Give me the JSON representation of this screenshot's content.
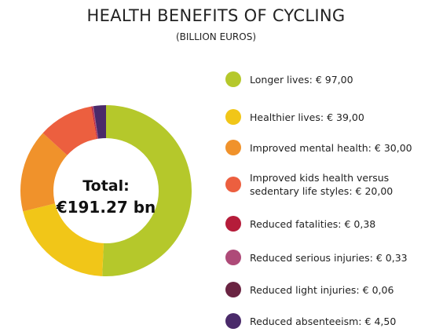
{
  "chart_data": {
    "type": "pie",
    "title": "HEALTH BENEFITS OF CYCLING",
    "subtitle": "(BILLION EUROS)",
    "center_label": "Total:",
    "center_value": "€191.27 bn",
    "categories": [
      "Longer lives:",
      "Healthier lives:",
      "Improved mental health:",
      "Improved kids health versus sedentary life styles:",
      "Reduced fatalities:",
      "Reduced serious injuries:",
      "Reduced light injuries:",
      "Reduced absenteeism:"
    ],
    "values": [
      97,
      39,
      30,
      20,
      0.38,
      0.33,
      0.06,
      4.5
    ],
    "value_labels": [
      "€ 97,00",
      "€ 39,00",
      "€ 30,00",
      "€ 20,00",
      "€ 0,38",
      "€ 0,33",
      "€ 0,06",
      "€ 4,50"
    ],
    "colors": [
      "#b5c82b",
      "#f1c618",
      "#f0922b",
      "#ec5f3f",
      "#b51c3a",
      "#ae4a78",
      "#6a2442",
      "#4a2a6a"
    ],
    "donut": true
  }
}
